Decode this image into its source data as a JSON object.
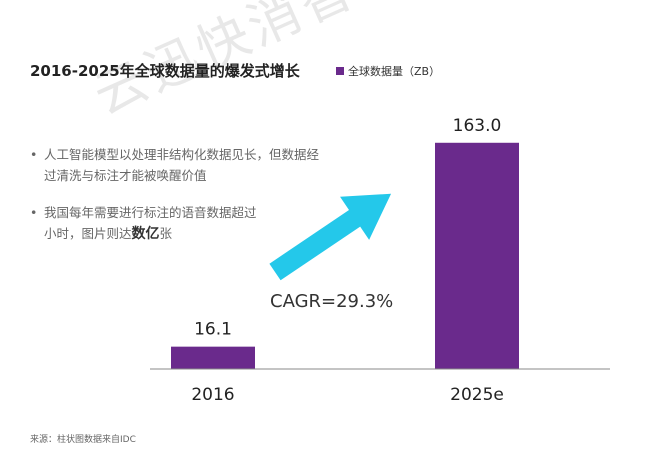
{
  "title": "2016-2025年全球数据量的爆发式增长",
  "legend_label": "全球数据量（ZB）",
  "bullets": {
    "b1": "人工智能模型以处理非结构化数据见长，但数据经过清洗与标注才能被唤醒价值",
    "b2_pre": "我国每年需要进行标注的语音数据超过",
    "b2_mid": "小时，图片则达",
    "b2_strong": "数亿",
    "b2_post": "张",
    "bullet_char": "•"
  },
  "cagr_label": "CAGR=29.3%",
  "watermark": "云迅快消智研中心",
  "source": "来源：柱状图数据来自IDC",
  "colors": {
    "bar": "#6a2a8c",
    "arrow": "#24c8ea",
    "baseline": "#888888"
  },
  "chart_data": {
    "type": "bar",
    "categories": [
      "2016",
      "2025e"
    ],
    "series": [
      {
        "name": "全球数据量（ZB）",
        "values": [
          16.1,
          163.0
        ]
      }
    ],
    "data_labels": [
      "16.1",
      "163.0"
    ],
    "title": "2016-2025年全球数据量的爆发式增长",
    "xlabel": "",
    "ylabel": "",
    "ylim": [
      0,
      165
    ],
    "grid": false,
    "legend": "top"
  }
}
